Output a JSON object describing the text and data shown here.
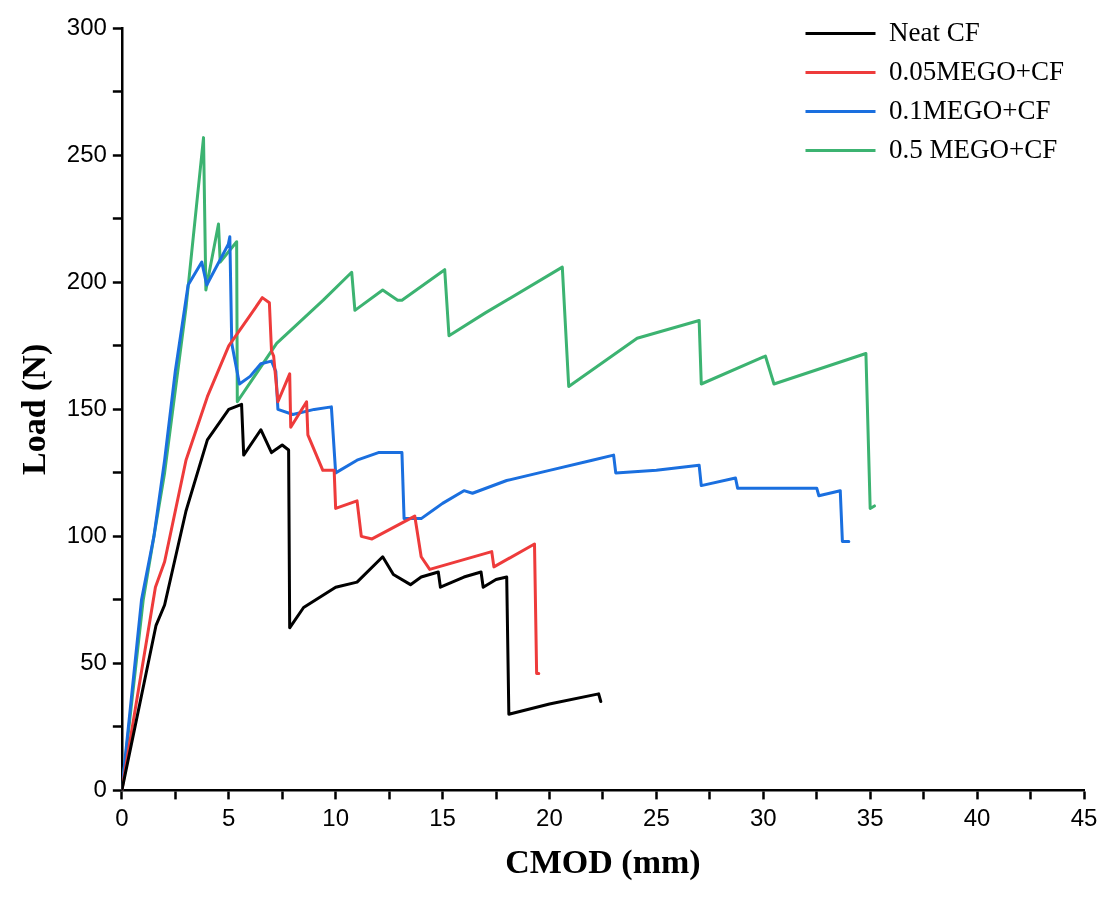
{
  "chart_data": {
    "type": "line",
    "xlabel": "CMOD (mm)",
    "ylabel": "Load (N)",
    "xlim": [
      0,
      45
    ],
    "ylim": [
      0,
      300
    ],
    "xticks": [
      0,
      {
        "value": 2.5,
        "label": null
      },
      5,
      {
        "value": 7.5,
        "label": null
      },
      10,
      {
        "value": 12.5,
        "label": null
      },
      15,
      {
        "value": 17.5,
        "label": null
      },
      20,
      {
        "value": 22.5,
        "label": null
      },
      25,
      {
        "value": 27.5,
        "label": null
      },
      30,
      {
        "value": 32.5,
        "label": null
      },
      35,
      {
        "value": 37.5,
        "label": null
      },
      40,
      {
        "value": 42.5,
        "label": null
      },
      45
    ],
    "yticks": [
      0,
      {
        "value": 25,
        "label": null
      },
      50,
      {
        "value": 75,
        "label": null
      },
      100,
      {
        "value": 125,
        "label": null
      },
      150,
      {
        "value": 175,
        "label": null
      },
      200,
      {
        "value": 225,
        "label": null
      },
      250,
      {
        "value": 275,
        "label": null
      },
      300
    ],
    "grid": false,
    "legend": "top right",
    "marker": "none",
    "line_style": "solid",
    "series": [
      {
        "name": "Neat CF",
        "color": "#000000",
        "type": "line",
        "x": [
          0,
          1.6,
          2,
          3,
          4,
          5,
          5.6,
          5.7,
          6.5,
          7,
          7.5,
          7.8,
          7.85,
          8.5,
          10,
          11,
          12.2,
          12.7,
          13.5,
          14,
          14.8,
          14.9,
          16,
          16.8,
          16.9,
          17.5,
          18,
          18.1,
          20,
          22.3,
          22.4
        ],
        "values": [
          0,
          65,
          73,
          110,
          138,
          150,
          152,
          132,
          142,
          133,
          136,
          134,
          64,
          72,
          80,
          82,
          92,
          85,
          81,
          84,
          86,
          80,
          84,
          86,
          80,
          83,
          84,
          30,
          34,
          38,
          35
        ]
      },
      {
        "name": "0.05MEGO+CF",
        "color": "#ee3b3b",
        "type": "line",
        "x": [
          0,
          1.57,
          2,
          3,
          4,
          5,
          6,
          6.57,
          6.9,
          7.0,
          7.1,
          7.3,
          7.85,
          7.9,
          8.64,
          8.7,
          9.4,
          9.93,
          10,
          11,
          11.2,
          11.7,
          13.7,
          14.0,
          14.4,
          17.3,
          17.4,
          19.3,
          19.4,
          19.5
        ],
        "values": [
          0,
          80,
          90,
          130,
          155,
          175,
          187,
          194,
          192,
          173,
          171,
          153,
          164,
          143,
          153,
          140,
          126,
          126,
          111,
          114,
          100,
          99,
          108,
          92,
          87,
          94,
          88,
          97,
          46,
          46
        ]
      },
      {
        "name": "0.1MEGO+CF",
        "color": "#1a6fdf",
        "type": "line",
        "x": [
          0,
          0.92,
          1.5,
          2,
          2.5,
          3.1,
          3.74,
          3.97,
          4.98,
          5.05,
          5.14,
          5.5,
          6,
          6.5,
          7,
          7.2,
          7.3,
          8,
          9,
          9.8,
          10,
          11,
          12,
          13.1,
          13.2,
          14,
          15,
          16,
          16.4,
          18,
          20,
          22,
          23,
          23.1,
          25,
          27,
          27.1,
          28.7,
          28.8,
          32.5,
          32.6,
          33.6,
          33.7,
          34
        ],
        "values": [
          0,
          75,
          100,
          130,
          165,
          199,
          208,
          199,
          215,
          218,
          176,
          160,
          163,
          168,
          169,
          165,
          150,
          148,
          150,
          151,
          125,
          130,
          133,
          133,
          107,
          107,
          113,
          118,
          117,
          122,
          126,
          130,
          132,
          125,
          126,
          128,
          120,
          123,
          119,
          119,
          116,
          118,
          98,
          98
        ]
      },
      {
        "name": "0.5 MEGO+CF",
        "color": "#3cb371",
        "type": "line",
        "x": [
          0,
          1,
          2,
          3,
          3.82,
          3.93,
          4.52,
          4.6,
          5.37,
          5.4,
          7.24,
          9.42,
          10.75,
          10.9,
          12.2,
          12.9,
          13.1,
          15.1,
          15.3,
          17,
          20.6,
          20.9,
          24.1,
          27,
          27.1,
          30.1,
          30.5,
          34.8,
          35,
          35.2
        ],
        "values": [
          0,
          75,
          125,
          190,
          257,
          197,
          223,
          208,
          216,
          153,
          176,
          193,
          204,
          189,
          197,
          193,
          193,
          205,
          179,
          188,
          206,
          159,
          178,
          185,
          160,
          171,
          160,
          172,
          111,
          112
        ]
      }
    ]
  }
}
